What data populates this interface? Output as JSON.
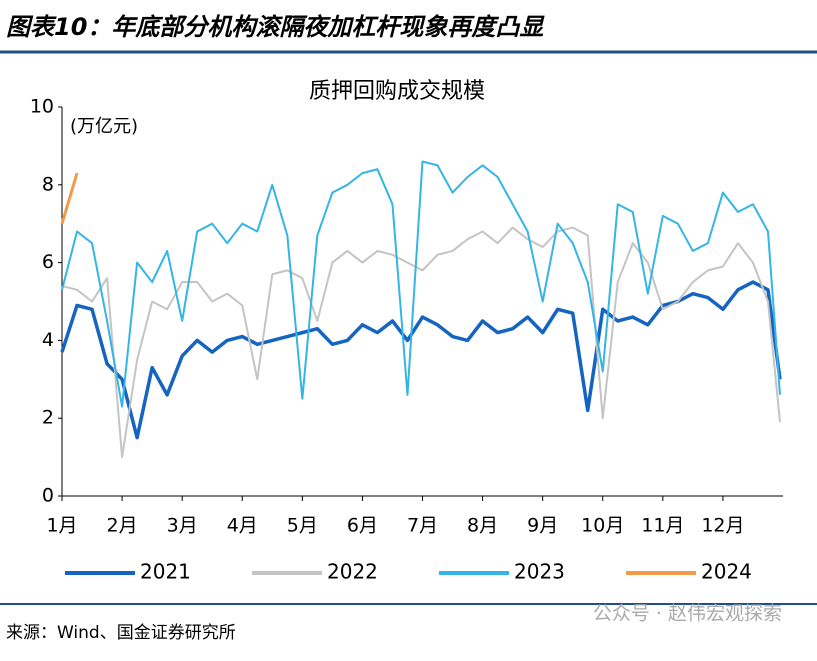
{
  "header": {
    "title": "图表10：年底部分机构滚隔夜加杠杆现象再度凸显"
  },
  "chart_data": {
    "type": "line",
    "title": "质押回购成交规模",
    "y_label": "(万亿元)",
    "x": [
      1,
      1.25,
      1.5,
      1.75,
      2,
      2.25,
      2.5,
      2.75,
      3,
      3.25,
      3.5,
      3.75,
      4,
      4.25,
      4.5,
      4.75,
      5,
      5.25,
      5.5,
      5.75,
      6,
      6.25,
      6.5,
      6.75,
      7,
      7.25,
      7.5,
      7.75,
      8,
      8.25,
      8.5,
      8.75,
      9,
      9.25,
      9.5,
      9.75,
      10,
      10.25,
      10.5,
      10.75,
      11,
      11.25,
      11.5,
      11.75,
      12,
      12.25,
      12.5,
      12.75,
      12.95
    ],
    "series": [
      {
        "name": "2021",
        "color": "#1565c0",
        "width": 3.5,
        "values": [
          3.7,
          4.9,
          4.8,
          3.4,
          3.0,
          1.5,
          3.3,
          2.6,
          3.6,
          4.0,
          3.7,
          4.0,
          4.1,
          3.9,
          4.0,
          4.1,
          4.2,
          4.3,
          3.9,
          4.0,
          4.4,
          4.2,
          4.5,
          4.0,
          4.6,
          4.4,
          4.1,
          4.0,
          4.5,
          4.2,
          4.3,
          4.6,
          4.2,
          4.8,
          4.7,
          2.2,
          4.8,
          4.5,
          4.6,
          4.4,
          4.9,
          5.0,
          5.2,
          5.1,
          4.8,
          5.3,
          5.5,
          5.3,
          3.0
        ]
      },
      {
        "name": "2022",
        "color": "#c4c4c4",
        "width": 2,
        "values": [
          5.4,
          5.3,
          5.0,
          5.6,
          1.0,
          3.5,
          5.0,
          4.8,
          5.5,
          5.5,
          5.0,
          5.2,
          4.9,
          3.0,
          5.7,
          5.8,
          5.6,
          4.5,
          6.0,
          6.3,
          6.0,
          6.3,
          6.2,
          6.0,
          5.8,
          6.2,
          6.3,
          6.6,
          6.8,
          6.5,
          6.9,
          6.6,
          6.4,
          6.8,
          6.9,
          6.7,
          2.0,
          5.5,
          6.5,
          6.0,
          4.8,
          5.0,
          5.5,
          5.8,
          5.9,
          6.5,
          6.0,
          5.0,
          1.9
        ]
      },
      {
        "name": "2023",
        "color": "#33b5e5",
        "width": 2,
        "values": [
          5.3,
          6.8,
          6.5,
          4.5,
          2.3,
          6.0,
          5.5,
          6.3,
          4.5,
          6.8,
          7.0,
          6.5,
          7.0,
          6.8,
          8.0,
          6.7,
          2.5,
          6.7,
          7.8,
          8.0,
          8.3,
          8.4,
          7.5,
          2.6,
          8.6,
          8.5,
          7.8,
          8.2,
          8.5,
          8.2,
          7.5,
          6.8,
          5.0,
          7.0,
          6.5,
          5.5,
          3.2,
          7.5,
          7.3,
          5.2,
          7.2,
          7.0,
          6.3,
          6.5,
          7.8,
          7.3,
          7.5,
          6.8,
          2.6
        ]
      },
      {
        "name": "2024",
        "color": "#f39a4a",
        "width": 3,
        "values": [
          7.0,
          8.3,
          null,
          null,
          null,
          null,
          null,
          null,
          null,
          null,
          null,
          null,
          null,
          null,
          null,
          null,
          null,
          null,
          null,
          null,
          null,
          null,
          null,
          null,
          null,
          null,
          null,
          null,
          null,
          null,
          null,
          null,
          null,
          null,
          null,
          null,
          null,
          null,
          null,
          null,
          null,
          null,
          null,
          null,
          null,
          null,
          null,
          null,
          null
        ]
      }
    ],
    "xlim": [
      1,
      13
    ],
    "xticks": [
      {
        "value": 1,
        "label": "1月"
      },
      {
        "value": 2,
        "label": "2月"
      },
      {
        "value": 3,
        "label": "3月"
      },
      {
        "value": 4,
        "label": "4月"
      },
      {
        "value": 5,
        "label": "5月"
      },
      {
        "value": 6,
        "label": "6月"
      },
      {
        "value": 7,
        "label": "7月"
      },
      {
        "value": 8,
        "label": "8月"
      },
      {
        "value": 9,
        "label": "9月"
      },
      {
        "value": 10,
        "label": "10月"
      },
      {
        "value": 11,
        "label": "11月"
      },
      {
        "value": 12,
        "label": "12月"
      }
    ],
    "ylim": [
      0,
      10
    ],
    "yticks": [
      0,
      2,
      4,
      6,
      8,
      10
    ],
    "legend": "bottom"
  },
  "footer": {
    "source": "来源：Wind、国金证券研究所",
    "watermark": "公众号 · 赵伟宏观探索"
  }
}
